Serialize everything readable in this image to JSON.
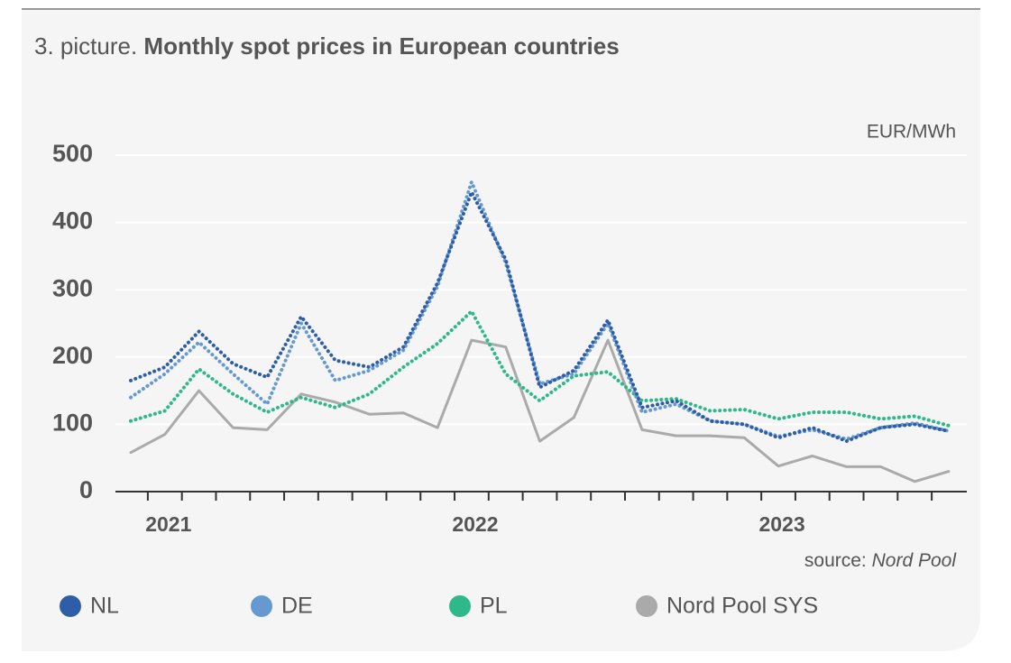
{
  "chart_data": {
    "type": "line",
    "figure_label": "3. picture.",
    "title": "Monthly spot prices in European countries",
    "unit": "EUR/MWh",
    "source_label": "source:",
    "source": "Nord Pool",
    "categories": [
      null,
      "2021",
      null,
      null,
      null,
      null,
      null,
      null,
      null,
      null,
      "2022",
      null,
      null,
      null,
      null,
      null,
      null,
      null,
      null,
      "2023",
      null,
      null,
      null,
      null,
      null
    ],
    "series": [
      {
        "name": "NL",
        "color": "#2f5ea8",
        "dotted": true,
        "values": [
          165,
          185,
          238,
          190,
          170,
          260,
          195,
          185,
          215,
          310,
          445,
          345,
          155,
          180,
          255,
          125,
          135,
          105,
          100,
          80,
          95,
          75,
          95,
          100,
          90
        ]
      },
      {
        "name": "DE",
        "color": "#6699d0",
        "dotted": true,
        "values": [
          140,
          175,
          222,
          175,
          130,
          250,
          165,
          180,
          210,
          305,
          460,
          340,
          160,
          175,
          250,
          118,
          130,
          105,
          100,
          82,
          92,
          78,
          95,
          102,
          90
        ]
      },
      {
        "name": "PL",
        "color": "#2fb88a",
        "dotted": true,
        "values": [
          105,
          120,
          182,
          145,
          118,
          140,
          125,
          145,
          185,
          220,
          268,
          175,
          135,
          172,
          178,
          135,
          138,
          120,
          122,
          108,
          118,
          118,
          108,
          112,
          98
        ]
      },
      {
        "name": "Nord Pool SYS",
        "color": "#aaaaaa",
        "dotted": false,
        "values": [
          58,
          85,
          150,
          95,
          92,
          145,
          133,
          115,
          117,
          95,
          225,
          215,
          75,
          110,
          225,
          92,
          83,
          83,
          80,
          38,
          53,
          37,
          37,
          15,
          30
        ]
      }
    ],
    "ylim": [
      0,
      500
    ],
    "yticks": [
      0,
      100,
      200,
      300,
      400,
      500
    ],
    "grid": true
  }
}
